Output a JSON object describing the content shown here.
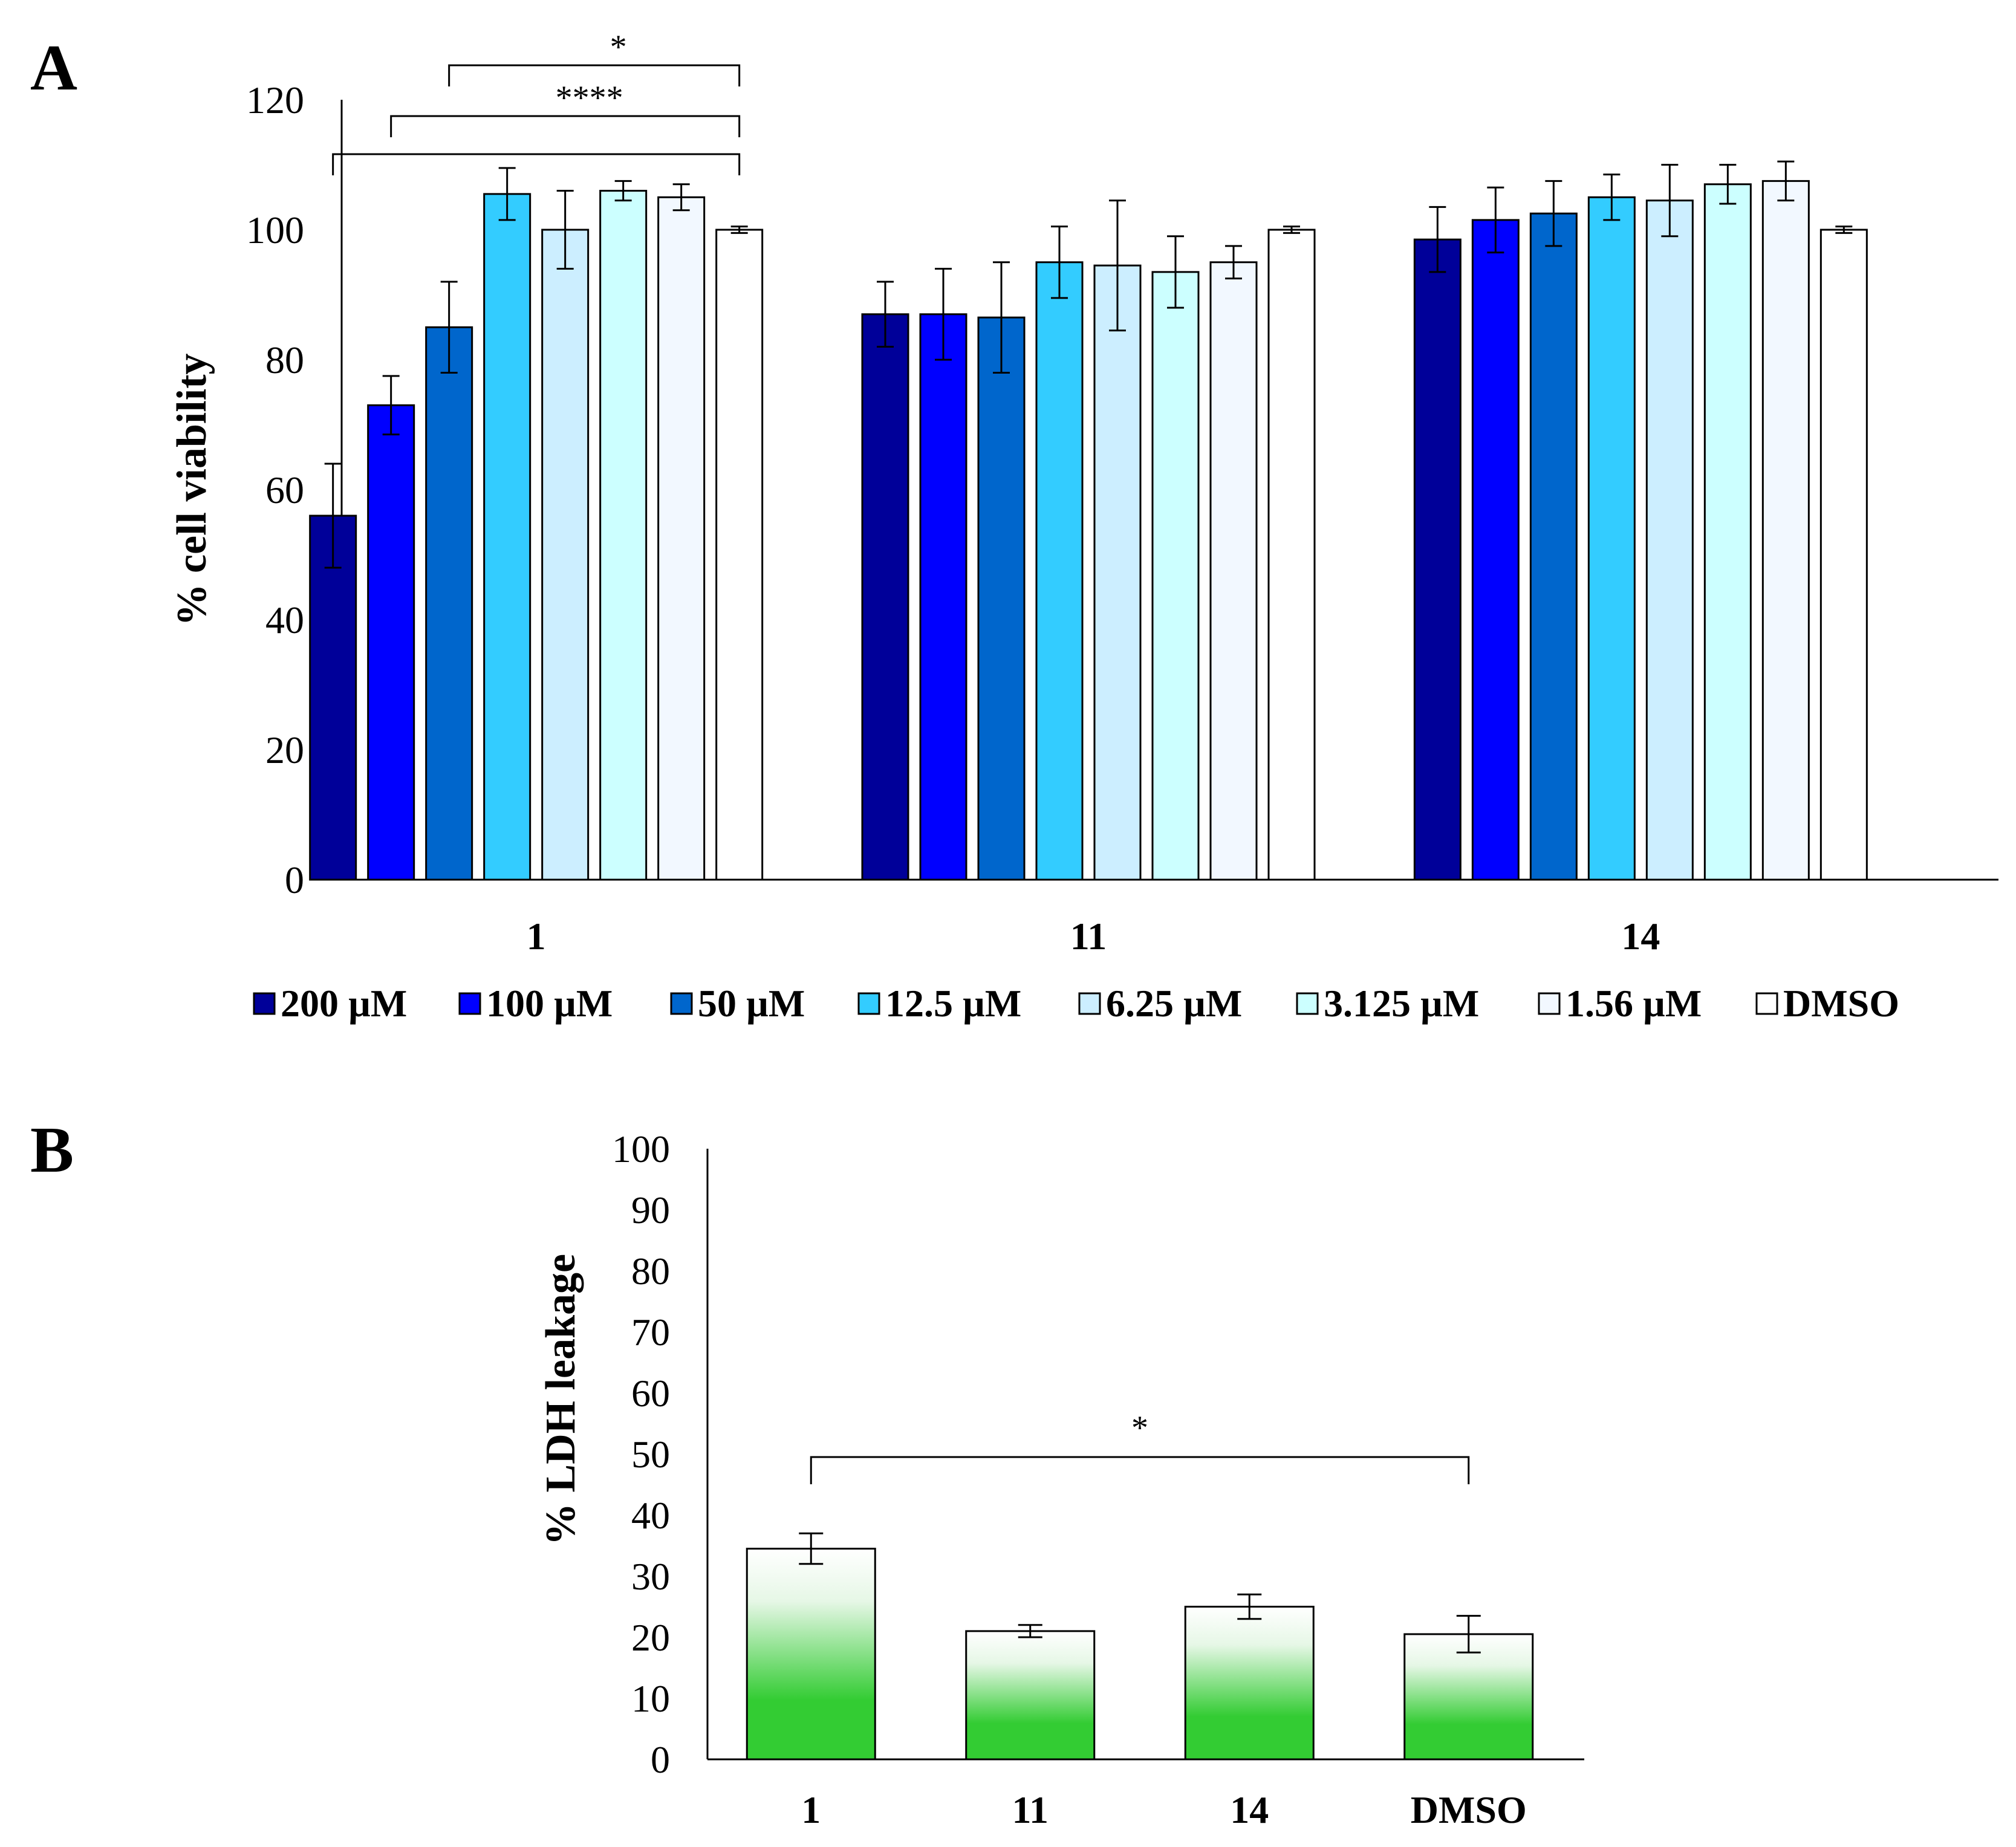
{
  "chart_data": [
    {
      "panel": "A",
      "type": "bar",
      "ylabel": "% cell viability",
      "xlabel": "",
      "ylim": [
        0,
        120
      ],
      "yticks": [
        0,
        20,
        40,
        60,
        80,
        100,
        120
      ],
      "categories": [
        "1",
        "11",
        "14"
      ],
      "grid": false,
      "legend_position": "bottom",
      "series": [
        {
          "name": "200 µM",
          "color": "#000099",
          "values": [
            56,
            87,
            98.5
          ],
          "errors": [
            8,
            5,
            5
          ]
        },
        {
          "name": "100 µM",
          "color": "#0000ff",
          "values": [
            73,
            87,
            101.5
          ],
          "errors": [
            4.5,
            7,
            5
          ]
        },
        {
          "name": "50 µM",
          "color": "#0066cc",
          "values": [
            85,
            86.5,
            102.5
          ],
          "errors": [
            7,
            8.5,
            5
          ]
        },
        {
          "name": "12.5 µM",
          "color": "#33ccff",
          "values": [
            105.5,
            95,
            105
          ],
          "errors": [
            4,
            5.5,
            3.5
          ]
        },
        {
          "name": "6.25 µM",
          "color": "#cceeff",
          "values": [
            100,
            94.5,
            104.5
          ],
          "errors": [
            6,
            10,
            5.5
          ]
        },
        {
          "name": "3.125 µM",
          "color": "#ccffff",
          "values": [
            106,
            93.5,
            107
          ],
          "errors": [
            1.5,
            5.5,
            3
          ]
        },
        {
          "name": "1.56 µM",
          "color": "#f2f8ff",
          "values": [
            105,
            95,
            107.5
          ],
          "errors": [
            2,
            2.5,
            3
          ]
        },
        {
          "name": "DMSO",
          "color": "#ffffff",
          "values": [
            100,
            100,
            100
          ],
          "errors": [
            0.5,
            0.5,
            0.5
          ]
        }
      ],
      "significance": [
        {
          "from_series": "200 µM",
          "to_series": "DMSO",
          "category": "1",
          "label": ""
        },
        {
          "from_series": "100 µM",
          "to_series": "DMSO",
          "category": "1",
          "label": "****"
        },
        {
          "from_series": "50 µM",
          "to_series": "DMSO",
          "category": "1",
          "label": "*"
        }
      ]
    },
    {
      "panel": "B",
      "type": "bar",
      "ylabel": "% LDH leakage",
      "xlabel": "",
      "ylim": [
        0,
        100
      ],
      "yticks": [
        0,
        10,
        20,
        30,
        40,
        50,
        60,
        70,
        80,
        90,
        100
      ],
      "categories": [
        "1",
        "11",
        "14",
        "DMSO"
      ],
      "grid": false,
      "fill": {
        "top": "#ffffff",
        "bottom": "#33cc33"
      },
      "values": [
        34.5,
        21,
        25,
        20.5
      ],
      "errors": [
        2.5,
        1,
        2,
        3
      ],
      "significance": [
        {
          "from": "1",
          "to": "DMSO",
          "label": "*"
        }
      ]
    }
  ]
}
